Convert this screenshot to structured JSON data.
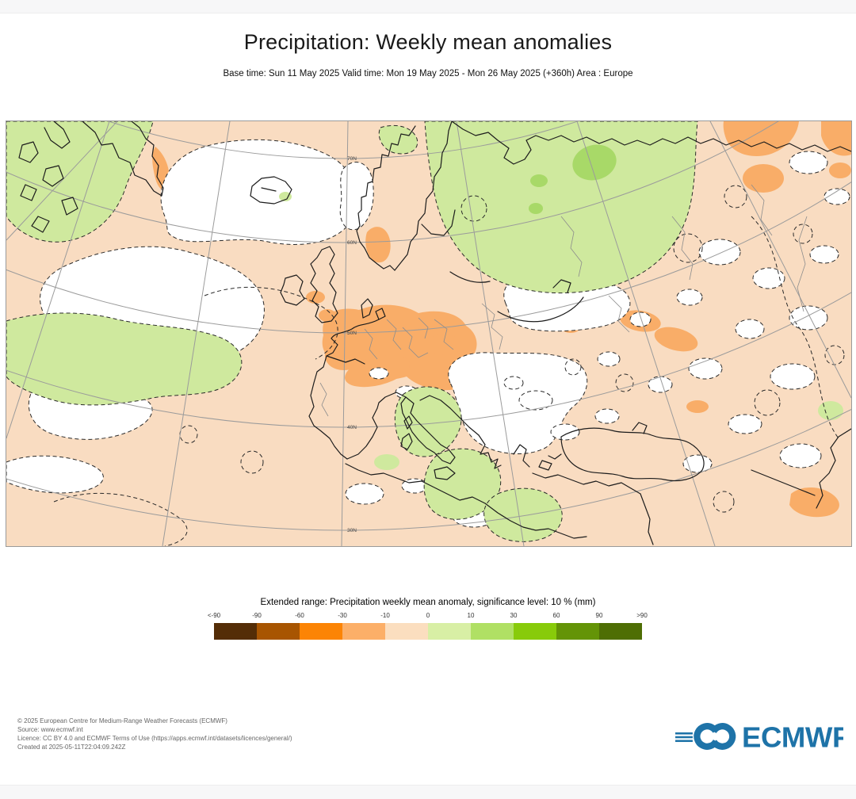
{
  "header": {
    "title": "Precipitation: Weekly mean anomalies",
    "subtitle": "Base time: Sun 11 May 2025 Valid time: Mon 19 May 2025 - Mon 26 May 2025 (+360h) Area : Europe"
  },
  "map": {
    "lat_labels": [
      "70N",
      "60N",
      "50N",
      "40N",
      "30N"
    ]
  },
  "legend": {
    "title": "Extended range: Precipitation weekly mean anomaly, significance level: 10 % (mm)",
    "ticks": [
      "<-90",
      "-90",
      "-60",
      "-30",
      "-10",
      "0",
      "10",
      "30",
      "60",
      "90",
      ">90"
    ],
    "colors": [
      "#542d07",
      "#a85501",
      "#fc8405",
      "#fcaf68",
      "#fbdebf",
      "#d8efa5",
      "#b0e064",
      "#88cb0a",
      "#649407",
      "#4e6e04"
    ]
  },
  "footer": {
    "lines": [
      "© 2025 European Centre for Medium-Range Weather Forecasts (ECMWF)",
      "Source: www.ecmwf.int",
      "Licence: CC BY 4.0 and ECMWF Terms of Use (https://apps.ecmwf.int/datasets/licences/general/)",
      "Created at 2025-05-11T22:04:09.242Z"
    ]
  },
  "logo": {
    "text": "ECMWF"
  },
  "colors": {
    "page_bg": "#ffffff",
    "band_gray": "#f7f7f8",
    "map_base": "#f9dcc1",
    "map_white": "#ffffff",
    "map_green": "#cfe99e",
    "map_green_bright": "#a8d968",
    "map_orange": "#f9ad68",
    "coastline": "#1c1c1c",
    "graticule": "#9b9b9b",
    "border_gray": "#8d8d8d",
    "contour_dash": "#2a2a2a",
    "logo_blue": "#1e73a8",
    "footer_text": "#666666"
  }
}
